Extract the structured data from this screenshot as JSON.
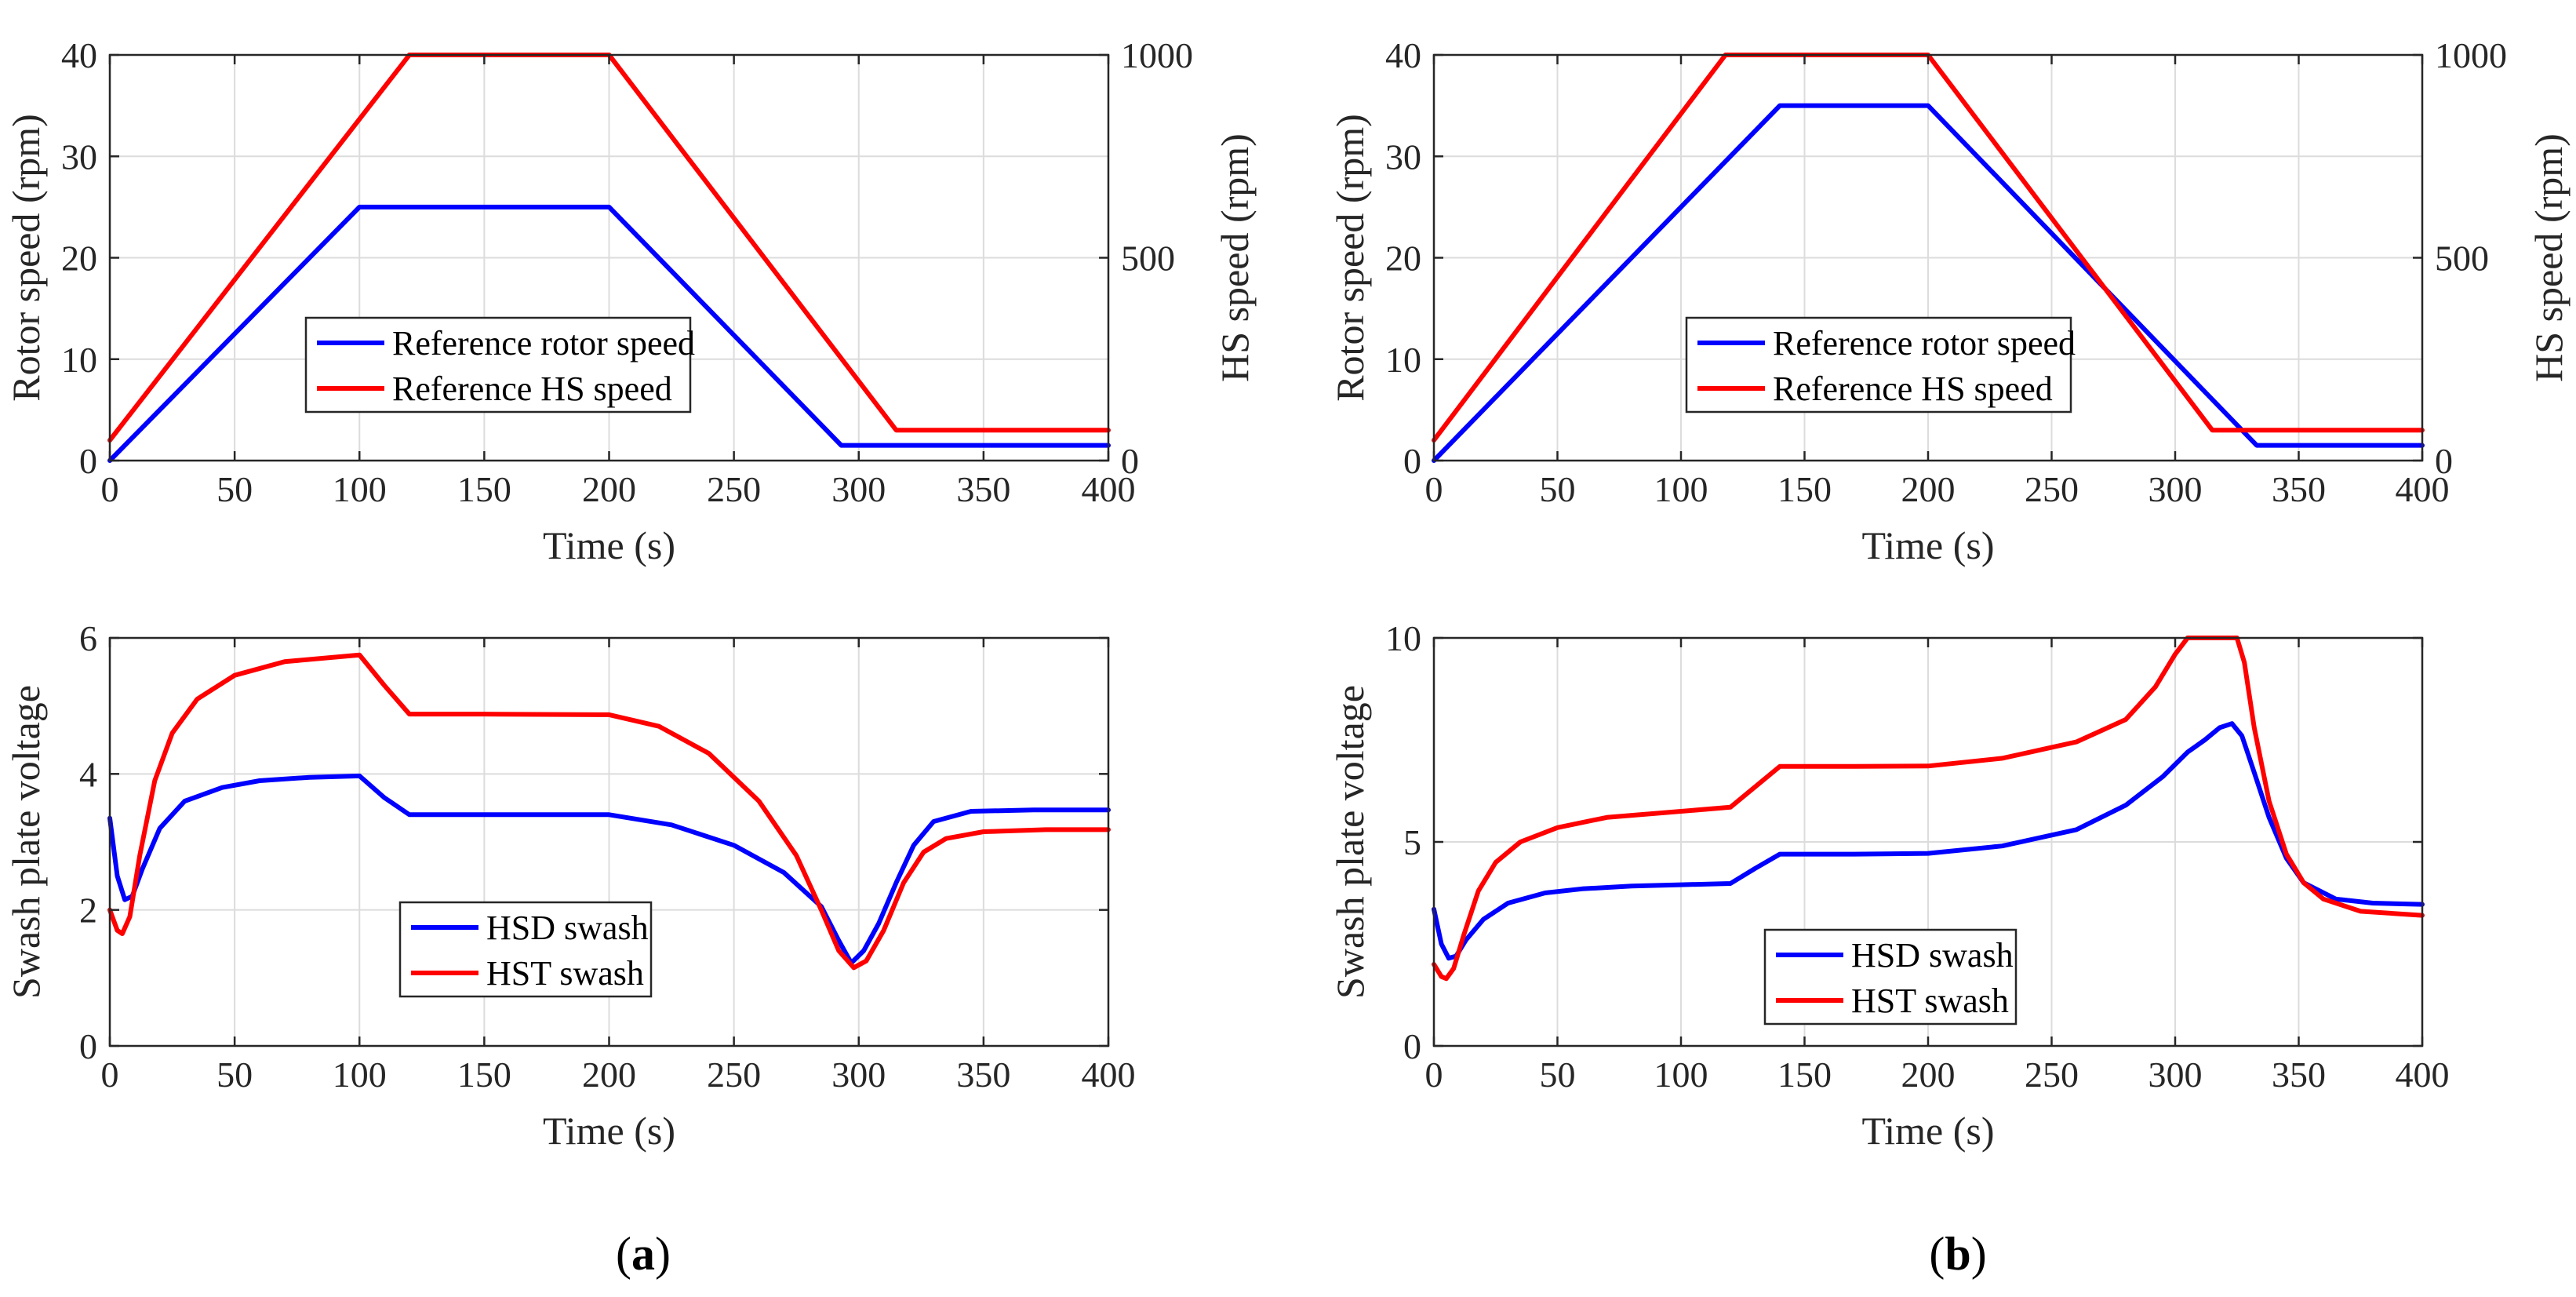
{
  "colors": {
    "blue": "#0000ff",
    "red": "#ff0000"
  },
  "panel_labels": [
    "(a)",
    "(b)"
  ],
  "chart_data": [
    {
      "id": "a-top",
      "type": "line",
      "xlabel": "Time (s)",
      "ylabel": "Rotor speed (rpm)",
      "ylabel_right": "HS speed (rpm)",
      "xlim": [
        0,
        400
      ],
      "ylim": [
        0,
        40
      ],
      "ylim_right": [
        0,
        1000
      ],
      "xticks": [
        0,
        50,
        100,
        150,
        200,
        250,
        300,
        350,
        400
      ],
      "yticks": [
        0,
        10,
        20,
        30,
        40
      ],
      "yticks_right": [
        0,
        500,
        1000
      ],
      "legend": [
        "Reference rotor speed",
        "Reference HS speed"
      ],
      "series": [
        {
          "name": "Reference rotor speed",
          "axis": "left",
          "color": "blue",
          "x": [
            0,
            100,
            200,
            293,
            400
          ],
          "y": [
            0,
            25,
            25,
            1.5,
            1.5
          ]
        },
        {
          "name": "Reference HS speed",
          "axis": "right",
          "color": "red",
          "x": [
            0,
            120,
            200,
            315,
            400
          ],
          "y": [
            50,
            1000,
            1000,
            75,
            75
          ]
        }
      ]
    },
    {
      "id": "a-bottom",
      "type": "line",
      "xlabel": "Time (s)",
      "ylabel": "Swash plate voltage",
      "xlim": [
        0,
        400
      ],
      "ylim": [
        0,
        6
      ],
      "xticks": [
        0,
        50,
        100,
        150,
        200,
        250,
        300,
        350,
        400
      ],
      "yticks": [
        0,
        2,
        4,
        6
      ],
      "legend": [
        "HSD swash",
        "HST swash"
      ],
      "series": [
        {
          "name": "HSD swash",
          "axis": "left",
          "color": "blue",
          "x": [
            0,
            3,
            6,
            9,
            13,
            20,
            30,
            45,
            60,
            80,
            100,
            110,
            120,
            150,
            200,
            225,
            250,
            270,
            285,
            292,
            297,
            302,
            308,
            315,
            322,
            330,
            345,
            370,
            400
          ],
          "y": [
            3.35,
            2.5,
            2.15,
            2.2,
            2.6,
            3.2,
            3.6,
            3.8,
            3.9,
            3.95,
            3.97,
            3.65,
            3.4,
            3.4,
            3.4,
            3.25,
            2.95,
            2.55,
            2.05,
            1.55,
            1.22,
            1.4,
            1.8,
            2.4,
            2.95,
            3.3,
            3.45,
            3.47,
            3.47
          ]
        },
        {
          "name": "HST swash",
          "axis": "left",
          "color": "red",
          "x": [
            0,
            3,
            5,
            8,
            12,
            18,
            25,
            35,
            50,
            70,
            100,
            110,
            120,
            150,
            200,
            220,
            240,
            260,
            275,
            285,
            292,
            298,
            303,
            310,
            318,
            326,
            335,
            350,
            375,
            400
          ],
          "y": [
            2.0,
            1.7,
            1.65,
            1.9,
            2.8,
            3.9,
            4.6,
            5.1,
            5.45,
            5.65,
            5.75,
            5.3,
            4.88,
            4.88,
            4.87,
            4.7,
            4.3,
            3.6,
            2.8,
            2.0,
            1.4,
            1.15,
            1.25,
            1.7,
            2.4,
            2.85,
            3.05,
            3.15,
            3.18,
            3.18
          ]
        }
      ]
    },
    {
      "id": "b-top",
      "type": "line",
      "xlabel": "Time (s)",
      "ylabel": "Rotor speed (rpm)",
      "ylabel_right": "HS speed (rpm)",
      "xlim": [
        0,
        400
      ],
      "ylim": [
        0,
        40
      ],
      "ylim_right": [
        0,
        1000
      ],
      "xticks": [
        0,
        50,
        100,
        150,
        200,
        250,
        300,
        350,
        400
      ],
      "yticks": [
        0,
        10,
        20,
        30,
        40
      ],
      "yticks_right": [
        0,
        500,
        1000
      ],
      "legend": [
        "Reference rotor speed",
        "Reference HS speed"
      ],
      "series": [
        {
          "name": "Reference rotor speed",
          "axis": "left",
          "color": "blue",
          "x": [
            0,
            140,
            200,
            333,
            400
          ],
          "y": [
            0,
            35,
            35,
            1.5,
            1.5
          ]
        },
        {
          "name": "Reference HS speed",
          "axis": "right",
          "color": "red",
          "x": [
            0,
            118,
            200,
            315,
            400
          ],
          "y": [
            50,
            1000,
            1000,
            75,
            75
          ]
        }
      ]
    },
    {
      "id": "b-bottom",
      "type": "line",
      "xlabel": "Time (s)",
      "ylabel": "Swash plate voltage",
      "xlim": [
        0,
        400
      ],
      "ylim": [
        0,
        10
      ],
      "xticks": [
        0,
        50,
        100,
        150,
        200,
        250,
        300,
        350,
        400
      ],
      "yticks": [
        0,
        5,
        10
      ],
      "legend": [
        "HSD swash",
        "HST swash"
      ],
      "series": [
        {
          "name": "HSD swash",
          "axis": "left",
          "color": "blue",
          "x": [
            0,
            3,
            6,
            9,
            13,
            20,
            30,
            45,
            60,
            80,
            100,
            120,
            130,
            140,
            170,
            200,
            230,
            260,
            280,
            295,
            305,
            312,
            318,
            323,
            327,
            332,
            338,
            345,
            352,
            365,
            380,
            400
          ],
          "y": [
            3.35,
            2.5,
            2.15,
            2.2,
            2.6,
            3.1,
            3.5,
            3.75,
            3.85,
            3.92,
            3.95,
            3.98,
            4.35,
            4.7,
            4.7,
            4.72,
            4.9,
            5.3,
            5.9,
            6.6,
            7.2,
            7.5,
            7.8,
            7.9,
            7.6,
            6.7,
            5.6,
            4.6,
            4.0,
            3.6,
            3.5,
            3.47
          ]
        },
        {
          "name": "HST swash",
          "axis": "left",
          "color": "red",
          "x": [
            0,
            3,
            5,
            8,
            12,
            18,
            25,
            35,
            50,
            70,
            100,
            120,
            130,
            140,
            170,
            200,
            230,
            260,
            280,
            292,
            300,
            305,
            310,
            320,
            325,
            328,
            332,
            338,
            345,
            352,
            360,
            375,
            400
          ],
          "y": [
            2.0,
            1.7,
            1.65,
            1.9,
            2.7,
            3.8,
            4.5,
            5.0,
            5.35,
            5.6,
            5.75,
            5.85,
            6.35,
            6.85,
            6.85,
            6.86,
            7.05,
            7.45,
            8.0,
            8.8,
            9.6,
            10.0,
            10.0,
            10.0,
            10.0,
            9.4,
            7.8,
            6.0,
            4.7,
            4.0,
            3.6,
            3.3,
            3.2
          ]
        }
      ]
    }
  ]
}
